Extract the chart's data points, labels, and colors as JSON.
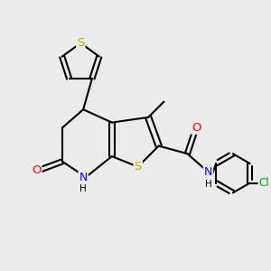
{
  "background_color": "#ebebeb",
  "atom_colors": {
    "S": "#c8a800",
    "N": "#0000ff",
    "O": "#ff0000",
    "Cl": "#00aa00",
    "C": "#000000",
    "H": "#000000"
  },
  "bond_color": "#000000",
  "bond_lw": 1.5,
  "font_size": 8.5,
  "figsize": [
    3.0,
    3.0
  ],
  "dpi": 100
}
